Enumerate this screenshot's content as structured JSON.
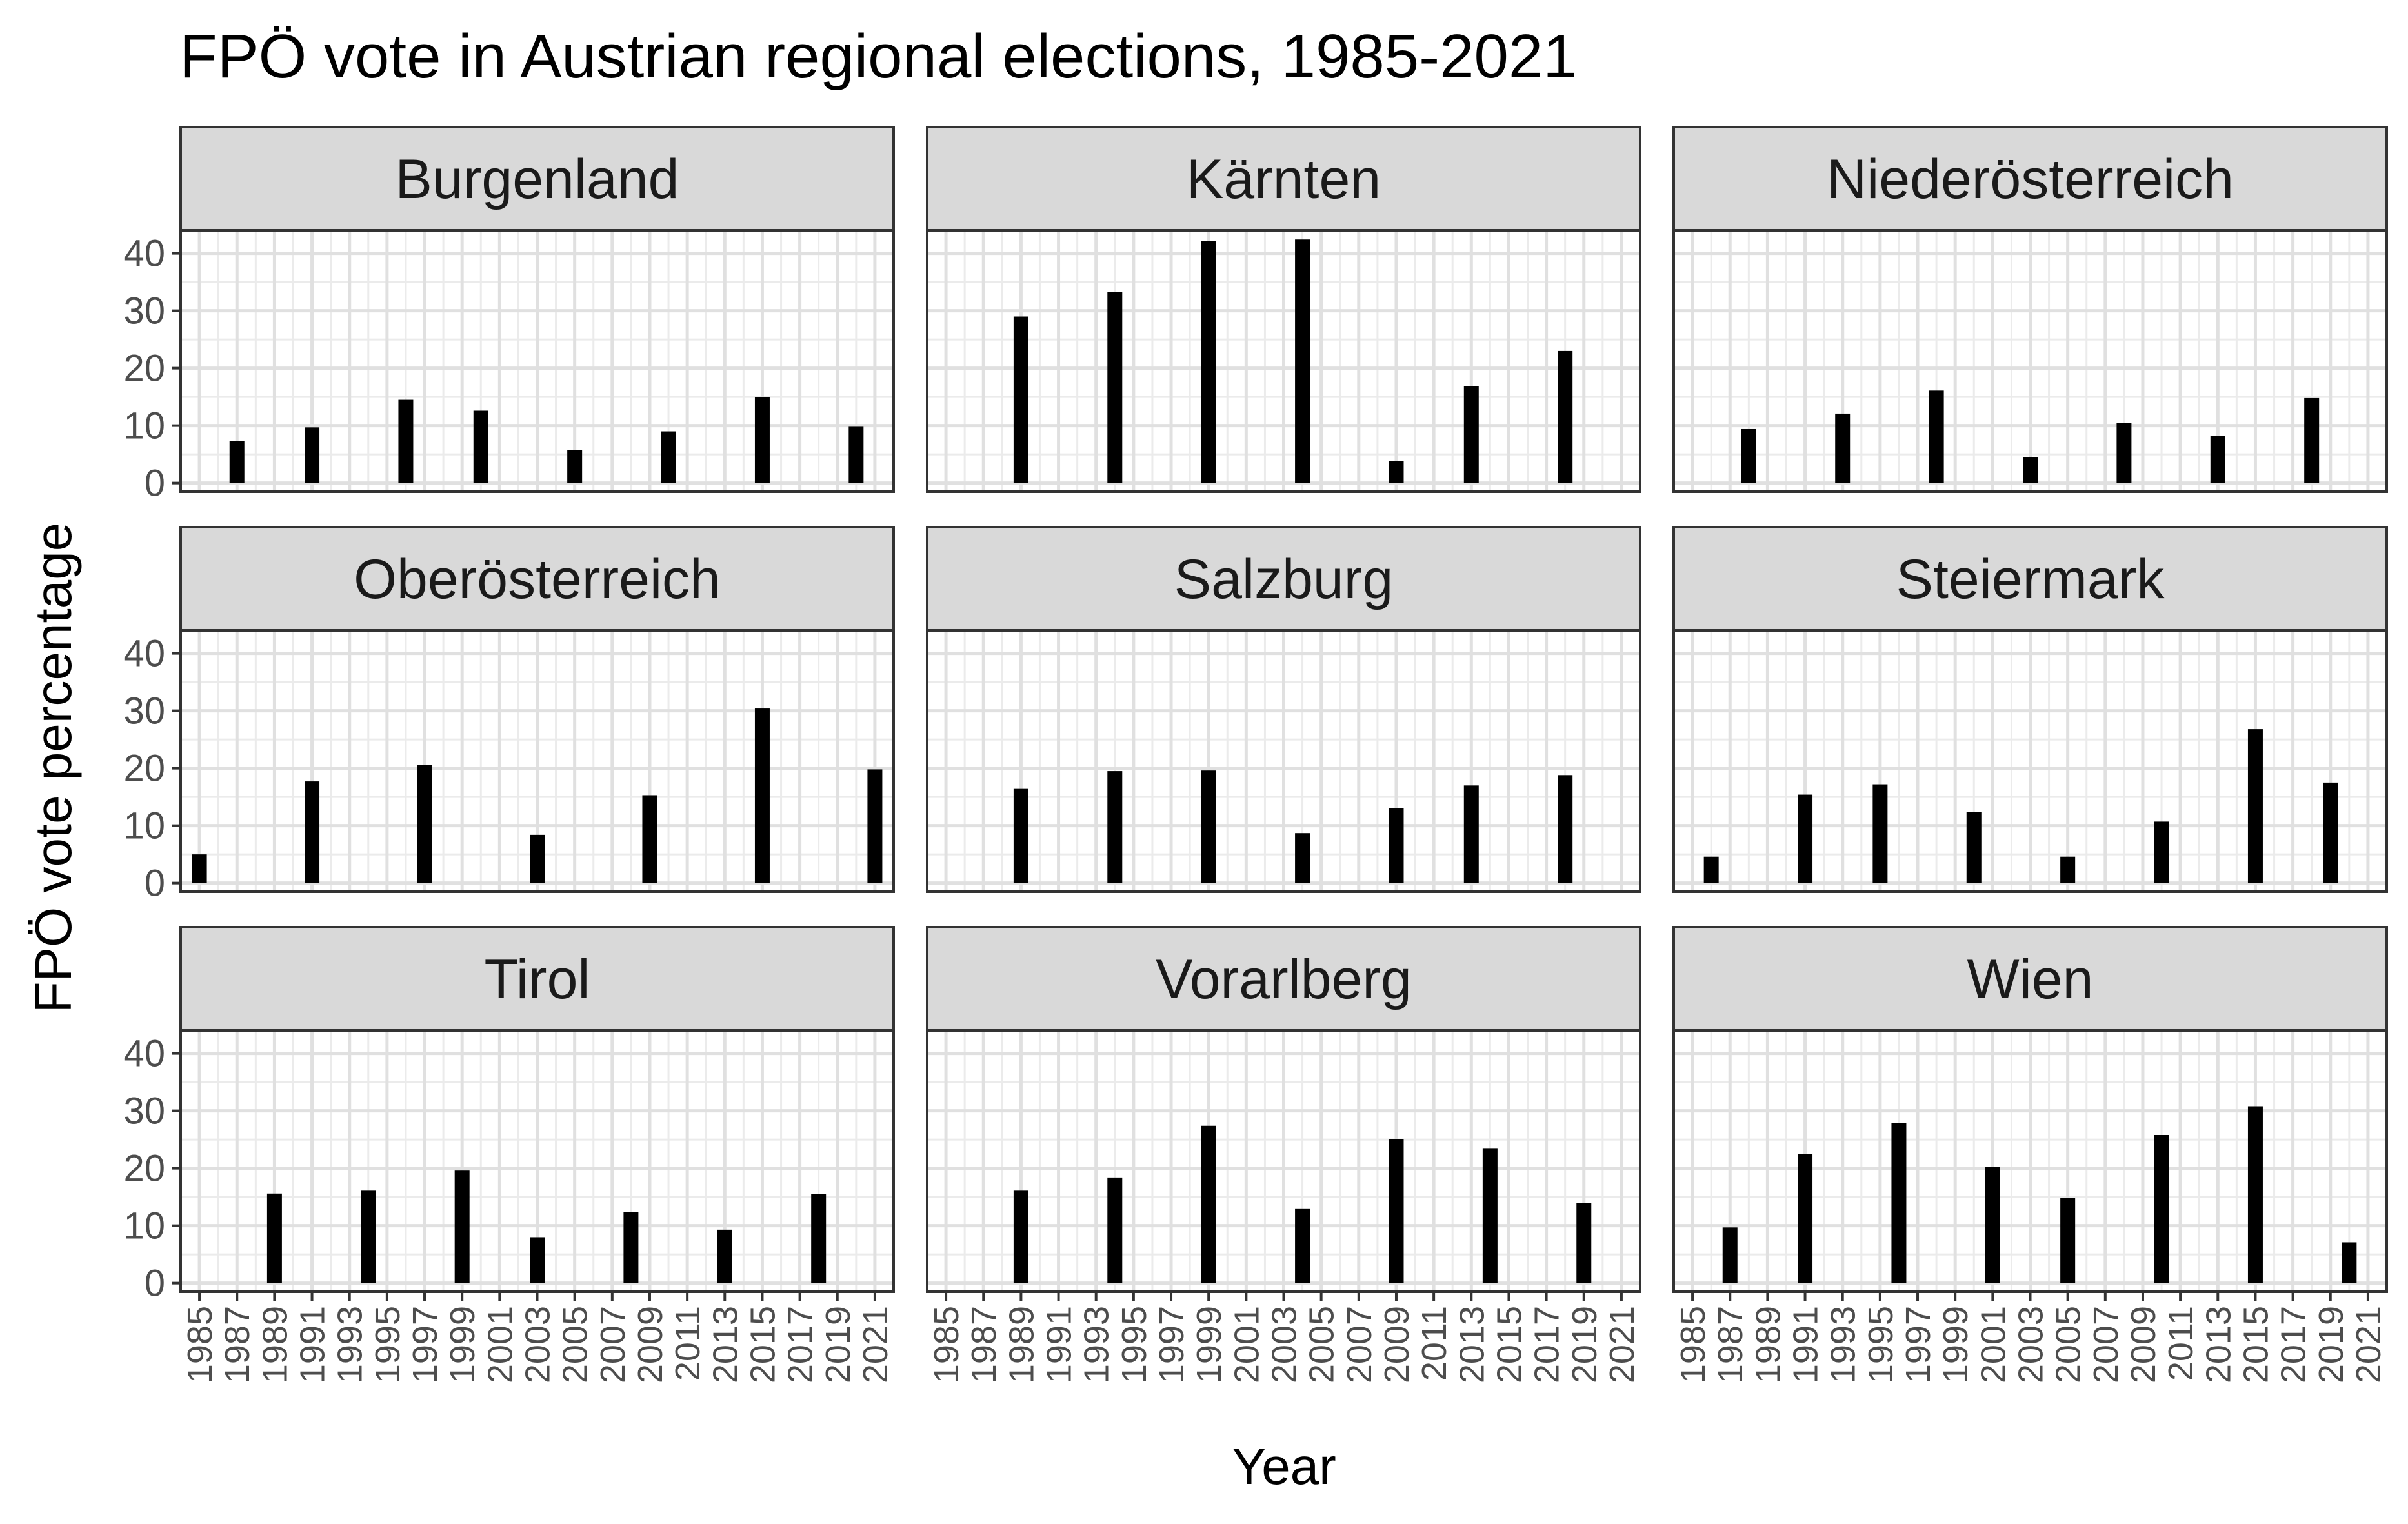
{
  "chart_data": {
    "type": "bar",
    "title": "FPÖ vote in Austrian regional elections, 1985-2021",
    "xlabel": "Year",
    "ylabel": "FPÖ vote percentage",
    "facets": 9,
    "facet_layout": "3x3",
    "x_ticks": [
      1985,
      1987,
      1989,
      1991,
      1993,
      1995,
      1997,
      1999,
      2001,
      2003,
      2005,
      2007,
      2009,
      2011,
      2013,
      2015,
      2017,
      2019,
      2021
    ],
    "x_range": [
      1984,
      2022
    ],
    "y_ticks": [
      0,
      10,
      20,
      30,
      40
    ],
    "ylim": [
      -1.5,
      44
    ],
    "grid": true,
    "bar_color": "#000000",
    "panels": [
      {
        "name": "Burgenland",
        "x": [
          1987,
          1991,
          1996,
          2000,
          2005,
          2010,
          2015,
          2020
        ],
        "values": [
          7.3,
          9.7,
          14.5,
          12.6,
          5.7,
          9.0,
          15.0,
          9.8
        ]
      },
      {
        "name": "Kärnten",
        "x": [
          1989,
          1994,
          1999,
          2004,
          2009,
          2013,
          2018
        ],
        "values": [
          29.0,
          33.3,
          42.1,
          42.4,
          3.8,
          16.9,
          23.0
        ]
      },
      {
        "name": "Niederösterreich",
        "x": [
          1988,
          1993,
          1998,
          2003,
          2008,
          2013,
          2018
        ],
        "values": [
          9.4,
          12.1,
          16.1,
          4.5,
          10.5,
          8.2,
          14.8
        ]
      },
      {
        "name": "Oberösterreich",
        "x": [
          1985,
          1991,
          1997,
          2003,
          2009,
          2015,
          2021
        ],
        "values": [
          5.0,
          17.7,
          20.6,
          8.4,
          15.3,
          30.4,
          19.8
        ]
      },
      {
        "name": "Salzburg",
        "x": [
          1989,
          1994,
          1999,
          2004,
          2009,
          2013,
          2018
        ],
        "values": [
          16.4,
          19.5,
          19.6,
          8.7,
          13.0,
          17.0,
          18.8
        ]
      },
      {
        "name": "Steiermark",
        "x": [
          1986,
          1991,
          1995,
          2000,
          2005,
          2010,
          2015,
          2019
        ],
        "values": [
          4.6,
          15.4,
          17.2,
          12.4,
          4.6,
          10.7,
          26.8,
          17.5
        ]
      },
      {
        "name": "Tirol",
        "x": [
          1989,
          1994,
          1999,
          2003,
          2008,
          2013,
          2018
        ],
        "values": [
          15.6,
          16.1,
          19.6,
          8.0,
          12.4,
          9.3,
          15.5
        ]
      },
      {
        "name": "Vorarlberg",
        "x": [
          1989,
          1994,
          1999,
          2004,
          2009,
          2014,
          2019
        ],
        "values": [
          16.1,
          18.4,
          27.4,
          12.9,
          25.1,
          23.4,
          13.9
        ]
      },
      {
        "name": "Wien",
        "x": [
          1987,
          1991,
          1996,
          2001,
          2005,
          2010,
          2015,
          2020
        ],
        "values": [
          9.7,
          22.5,
          27.9,
          20.2,
          14.8,
          25.8,
          30.8,
          7.1
        ]
      }
    ]
  }
}
